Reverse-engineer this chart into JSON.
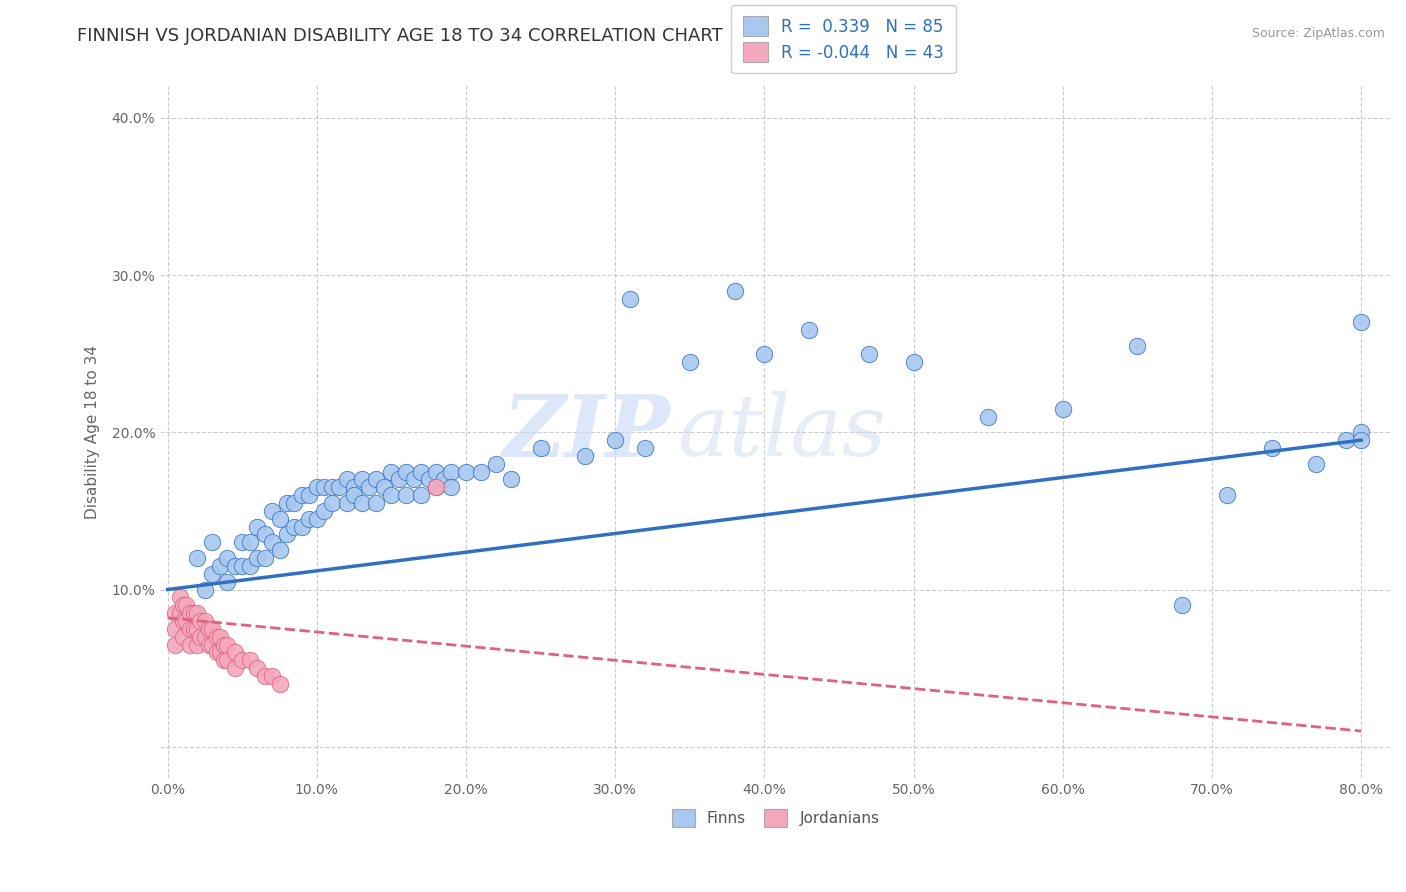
{
  "title": "FINNISH VS JORDANIAN DISABILITY AGE 18 TO 34 CORRELATION CHART",
  "source_text": "Source: ZipAtlas.com",
  "ylabel": "Disability Age 18 to 34",
  "watermark_zip": "ZIP",
  "watermark_atlas": "atlas",
  "finn_R": 0.339,
  "finn_N": 85,
  "jordan_R": -0.044,
  "jordan_N": 43,
  "xlim": [
    -0.005,
    0.82
  ],
  "ylim": [
    -0.02,
    0.42
  ],
  "xticks": [
    0.0,
    0.1,
    0.2,
    0.3,
    0.4,
    0.5,
    0.6,
    0.7,
    0.8
  ],
  "yticks": [
    0.0,
    0.1,
    0.2,
    0.3,
    0.4
  ],
  "ytick_labels": [
    "",
    "10.0%",
    "20.0%",
    "30.0%",
    "40.0%"
  ],
  "xtick_labels": [
    "0.0%",
    "10.0%",
    "20.0%",
    "30.0%",
    "40.0%",
    "50.0%",
    "60.0%",
    "70.0%",
    "80.0%"
  ],
  "finn_color": "#A8C8F0",
  "jordan_color": "#F4A8BC",
  "finn_line_color": "#3070C0",
  "jordan_line_color": "#E06080",
  "background_color": "#FFFFFF",
  "grid_color": "#CCCCCC",
  "title_fontsize": 13,
  "label_fontsize": 11,
  "tick_fontsize": 10,
  "legend_text_color": "#3070C0",
  "finn_scatter_x": [
    0.02,
    0.025,
    0.03,
    0.03,
    0.035,
    0.04,
    0.04,
    0.045,
    0.05,
    0.05,
    0.055,
    0.055,
    0.06,
    0.06,
    0.065,
    0.065,
    0.07,
    0.07,
    0.075,
    0.075,
    0.08,
    0.08,
    0.085,
    0.085,
    0.09,
    0.09,
    0.095,
    0.095,
    0.1,
    0.1,
    0.105,
    0.105,
    0.11,
    0.11,
    0.115,
    0.12,
    0.12,
    0.125,
    0.125,
    0.13,
    0.13,
    0.135,
    0.14,
    0.14,
    0.145,
    0.15,
    0.15,
    0.155,
    0.16,
    0.16,
    0.165,
    0.17,
    0.17,
    0.175,
    0.18,
    0.18,
    0.185,
    0.19,
    0.19,
    0.2,
    0.21,
    0.22,
    0.23,
    0.25,
    0.28,
    0.3,
    0.32,
    0.35,
    0.38,
    0.4,
    0.43,
    0.47,
    0.5,
    0.55,
    0.6,
    0.65,
    0.68,
    0.71,
    0.74,
    0.77,
    0.79,
    0.8,
    0.8,
    0.8,
    0.31
  ],
  "finn_scatter_y": [
    0.12,
    0.1,
    0.13,
    0.11,
    0.115,
    0.12,
    0.105,
    0.115,
    0.13,
    0.115,
    0.13,
    0.115,
    0.14,
    0.12,
    0.135,
    0.12,
    0.15,
    0.13,
    0.145,
    0.125,
    0.155,
    0.135,
    0.155,
    0.14,
    0.16,
    0.14,
    0.16,
    0.145,
    0.165,
    0.145,
    0.165,
    0.15,
    0.165,
    0.155,
    0.165,
    0.17,
    0.155,
    0.165,
    0.16,
    0.17,
    0.155,
    0.165,
    0.17,
    0.155,
    0.165,
    0.175,
    0.16,
    0.17,
    0.175,
    0.16,
    0.17,
    0.175,
    0.16,
    0.17,
    0.175,
    0.165,
    0.17,
    0.175,
    0.165,
    0.175,
    0.175,
    0.18,
    0.17,
    0.19,
    0.185,
    0.195,
    0.19,
    0.245,
    0.29,
    0.25,
    0.265,
    0.25,
    0.245,
    0.21,
    0.215,
    0.255,
    0.09,
    0.16,
    0.19,
    0.18,
    0.195,
    0.27,
    0.2,
    0.195,
    0.285
  ],
  "jordan_scatter_x": [
    0.005,
    0.005,
    0.005,
    0.008,
    0.008,
    0.01,
    0.01,
    0.01,
    0.012,
    0.012,
    0.015,
    0.015,
    0.015,
    0.018,
    0.018,
    0.02,
    0.02,
    0.02,
    0.022,
    0.022,
    0.025,
    0.025,
    0.028,
    0.028,
    0.03,
    0.03,
    0.033,
    0.033,
    0.035,
    0.035,
    0.038,
    0.038,
    0.04,
    0.04,
    0.045,
    0.045,
    0.05,
    0.055,
    0.06,
    0.065,
    0.07,
    0.075,
    0.18
  ],
  "jordan_scatter_y": [
    0.085,
    0.075,
    0.065,
    0.095,
    0.085,
    0.09,
    0.08,
    0.07,
    0.09,
    0.08,
    0.085,
    0.075,
    0.065,
    0.085,
    0.075,
    0.085,
    0.075,
    0.065,
    0.08,
    0.07,
    0.08,
    0.07,
    0.075,
    0.065,
    0.075,
    0.065,
    0.07,
    0.06,
    0.07,
    0.06,
    0.065,
    0.055,
    0.065,
    0.055,
    0.06,
    0.05,
    0.055,
    0.055,
    0.05,
    0.045,
    0.045,
    0.04,
    0.165
  ],
  "finn_trend_x0": 0.0,
  "finn_trend_y0": 0.1,
  "finn_trend_x1": 0.8,
  "finn_trend_y1": 0.195,
  "jordan_trend_x0": 0.0,
  "jordan_trend_y0": 0.082,
  "jordan_trend_x1": 0.8,
  "jordan_trend_y1": 0.01
}
